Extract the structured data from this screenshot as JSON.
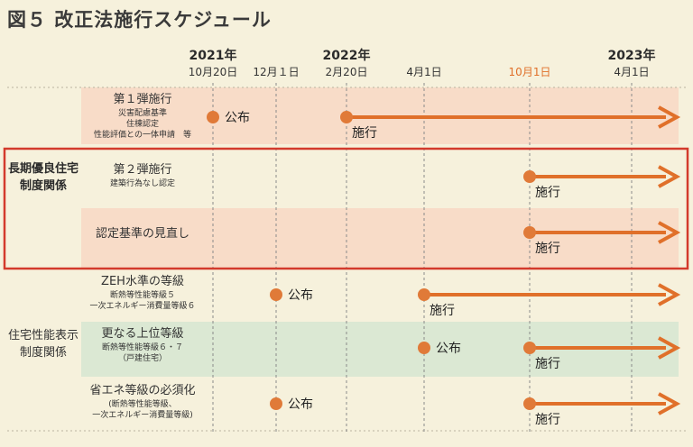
{
  "title": "図５ 改正法施行スケジュール",
  "colors": {
    "arrow": "#e0702a",
    "dot": "#e07a38",
    "frame": "#d33a2c",
    "band_pink": "#f8dcc8",
    "band_green": "#dbe8d3",
    "background": "#f6f1dc"
  },
  "timeline": [
    {
      "key": "t1",
      "year": "2021年",
      "date": "10月20日",
      "highlight": false
    },
    {
      "key": "t2",
      "year": "",
      "date": "12月１日",
      "highlight": false
    },
    {
      "key": "t3",
      "year": "2022年",
      "date": "2月20日",
      "highlight": false
    },
    {
      "key": "t4",
      "year": "",
      "date": "4月1日",
      "highlight": false
    },
    {
      "key": "t5",
      "year": "",
      "date": "10月1日",
      "highlight": true
    },
    {
      "key": "t6",
      "year": "2023年",
      "date": "4月1日",
      "highlight": false
    }
  ],
  "categories": [
    {
      "lines": [
        "長期優良住宅",
        "制度関係"
      ],
      "bold": true
    },
    {
      "lines": [
        "住宅性能表示",
        "制度関係"
      ],
      "bold": false
    }
  ],
  "rows": [
    {
      "key": "r1",
      "band": "pink",
      "label": "第１弾施行",
      "sublines": [
        "災害配慮基準",
        "住棟認定",
        "性能評価との一体申請　等"
      ],
      "events": [
        {
          "at": "t1",
          "text": "公布"
        },
        {
          "at": "t3",
          "text": "施行",
          "arrow": true
        }
      ]
    },
    {
      "key": "r2",
      "band": "none",
      "label": "第２弾施行",
      "sublines": [
        "建築行為なし認定"
      ],
      "events": [
        {
          "at": "t5",
          "text": "施行",
          "arrow": true
        }
      ]
    },
    {
      "key": "r3",
      "band": "pink",
      "label": "認定基準の見直し",
      "sublines": [],
      "events": [
        {
          "at": "t5",
          "text": "施行",
          "arrow": true
        }
      ]
    },
    {
      "key": "r4",
      "band": "none",
      "label": "ZEH水準の等級",
      "sublines": [
        "断熱等性能等級５",
        "一次エネルギー消費量等級６"
      ],
      "events": [
        {
          "at": "t2",
          "text": "公布"
        },
        {
          "at": "t4",
          "text": "施行",
          "arrow": true
        }
      ]
    },
    {
      "key": "r5",
      "band": "green",
      "label": "更なる上位等級",
      "sublines": [
        "断熱等性能等級６・７",
        "（戸建住宅）"
      ],
      "events": [
        {
          "at": "t4",
          "text": "公布"
        },
        {
          "at": "t5",
          "text": "施行",
          "arrow": true
        }
      ]
    },
    {
      "key": "r6",
      "band": "none",
      "label": "省エネ等級の必須化",
      "sublines": [
        "(断熱等性能等級、",
        "一次エネルギー消費量等級)"
      ],
      "events": [
        {
          "at": "t2",
          "text": "公布"
        },
        {
          "at": "t5",
          "text": "施行",
          "arrow": true
        }
      ]
    }
  ]
}
